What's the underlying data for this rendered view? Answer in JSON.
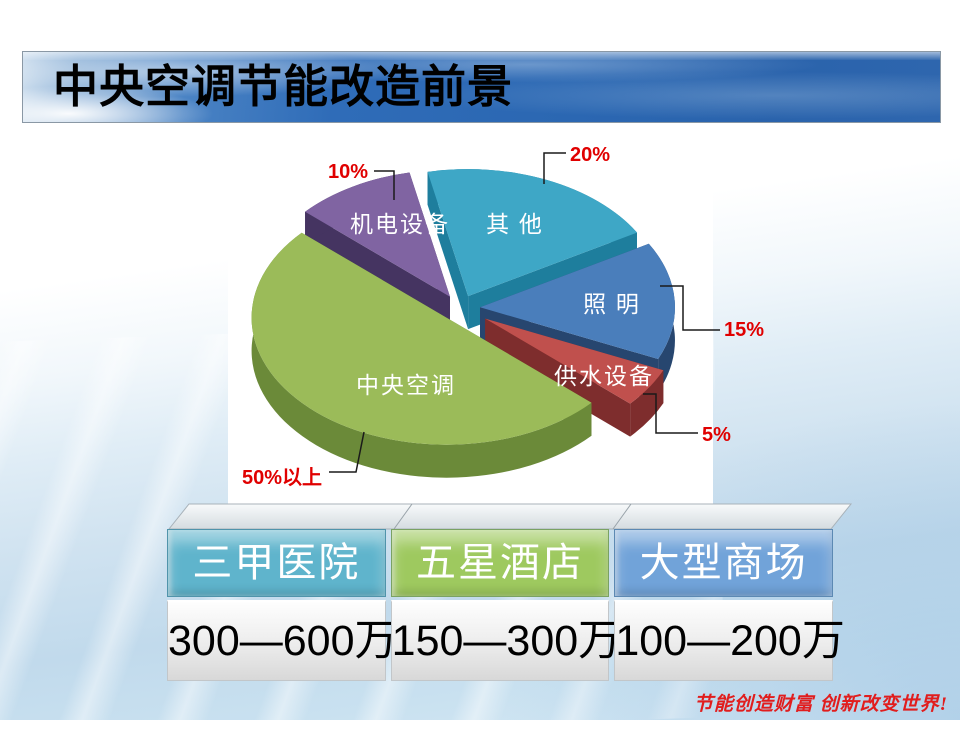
{
  "slide": {
    "title": "中央空调节能改造前景",
    "motto": "节能创造财富 创新改变世界!"
  },
  "chart_data": {
    "type": "pie",
    "style": "3d-exploded",
    "start_angle_deg": -12,
    "label_color": "#ffffff",
    "pct_label_color": "#e00000",
    "slices": [
      {
        "label": "其 他",
        "value": 20,
        "pct_label": "20%",
        "color": "#3EA7C6",
        "side_color": "#1E7E9D",
        "explode": 20
      },
      {
        "label": "照 明",
        "value": 15,
        "pct_label": "15%",
        "color": "#4A7EBB",
        "side_color": "#27466F",
        "explode": 20
      },
      {
        "label": "供水设备",
        "value": 5,
        "pct_label": "5%",
        "color": "#C0504D",
        "side_color": "#7E2D2D",
        "explode": 30
      },
      {
        "label": "中央空调",
        "value": 50,
        "pct_label": "50%以上",
        "color": "#9BBB59",
        "side_color": "#6B8A39",
        "explode": 20
      },
      {
        "label": "机电设备",
        "value": 10,
        "pct_label": "10%",
        "color": "#8064A2",
        "side_color": "#453461",
        "explode": 20
      }
    ]
  },
  "table": {
    "columns": [
      {
        "header": "三甲医院",
        "value": "300—600万",
        "header_color": "#5FB4CC"
      },
      {
        "header": "五星酒店",
        "value": "150—300万",
        "header_color": "#9EC95F"
      },
      {
        "header": "大型商场",
        "value": "100—200万",
        "header_color": "#71A3D9"
      }
    ]
  }
}
